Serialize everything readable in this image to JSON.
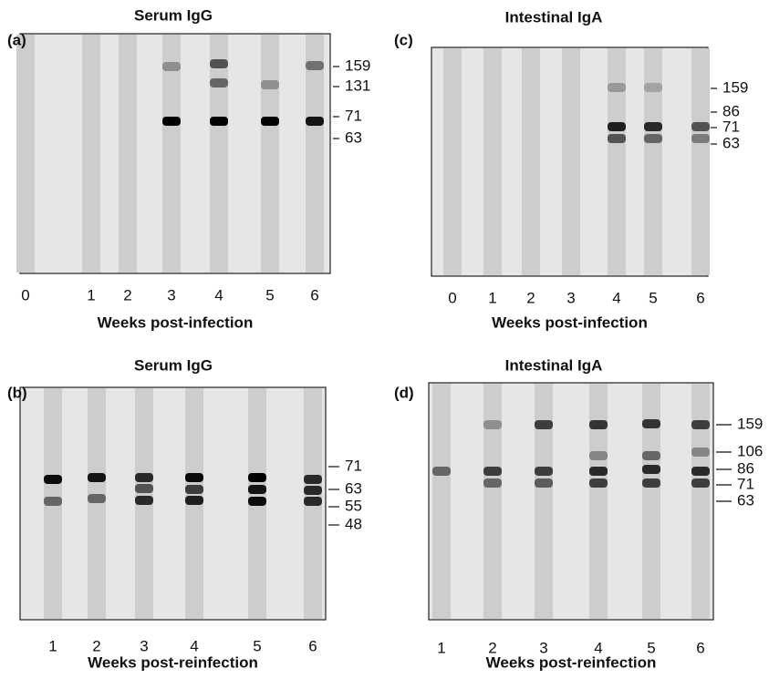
{
  "panels": [
    {
      "label": "(a)",
      "title": "Serum IgG",
      "lanes": [
        "0",
        "1",
        "2",
        "3",
        "4",
        "5",
        "6"
      ],
      "markers": [
        "159",
        "131",
        "71",
        "63"
      ],
      "xlabel": "Weeks post-infection"
    },
    {
      "label": "(c)",
      "title": "Intestinal IgA",
      "lanes": [
        "0",
        "1",
        "2",
        "3",
        "4",
        "5",
        "6"
      ],
      "markers": [
        "159",
        "86",
        "71",
        "63"
      ],
      "xlabel": "Weeks post-infection"
    },
    {
      "label": "(b)",
      "title": "Serum IgG",
      "lanes": [
        "1",
        "2",
        "3",
        "4",
        "5",
        "6"
      ],
      "markers": [
        "71",
        "63",
        "55",
        "48"
      ],
      "xlabel": "Weeks post-reinfection"
    },
    {
      "label": "(d)",
      "title": "Intestinal IgA",
      "lanes": [
        "1",
        "2",
        "3",
        "4",
        "5",
        "6"
      ],
      "markers": [
        "159",
        "106",
        "86",
        "71",
        "63"
      ],
      "xlabel": "Weeks post-reinfection"
    }
  ]
}
